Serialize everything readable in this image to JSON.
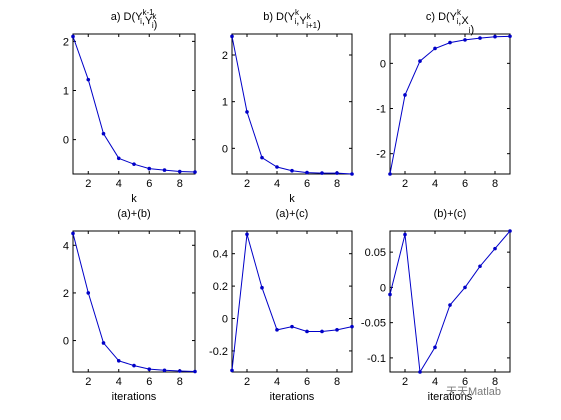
{
  "watermark": "天天Matlab",
  "chart_data": [
    {
      "type": "line",
      "title": {
        "base": "a)  D(Y",
        "parts": [
          {
            "sub": "i",
            "sup": "k-1"
          },
          {
            "text": ",Y"
          },
          {
            "sub": "i",
            "sup": "k"
          },
          {
            "text": ")"
          }
        ]
      },
      "xlabel": "k",
      "ylabel": "",
      "x": [
        1,
        2,
        3,
        4,
        5,
        6,
        7,
        8,
        9
      ],
      "series": [
        {
          "values": [
            2.1,
            1.22,
            0.12,
            -0.38,
            -0.5,
            -0.59,
            -0.62,
            -0.65,
            -0.66
          ]
        }
      ],
      "xlim": [
        1,
        9
      ],
      "ylim": [
        -0.7,
        2.15
      ],
      "xticks": [
        2,
        4,
        6,
        8
      ],
      "yticks": [
        0,
        1,
        2
      ],
      "color": "#0000c8"
    },
    {
      "type": "line",
      "title": {
        "base": "b)  D(Y",
        "parts": [
          {
            "sub": "i",
            "sup": "k"
          },
          {
            "text": ",Y"
          },
          {
            "sub": "i+1",
            "sup": "k"
          },
          {
            "text": ")"
          }
        ]
      },
      "xlabel": "k",
      "ylabel": "",
      "x": [
        1,
        2,
        3,
        4,
        5,
        6,
        7,
        8,
        9
      ],
      "series": [
        {
          "values": [
            2.4,
            0.78,
            -0.2,
            -0.4,
            -0.48,
            -0.52,
            -0.53,
            -0.53,
            -0.55
          ]
        }
      ],
      "xlim": [
        1,
        9
      ],
      "ylim": [
        -0.55,
        2.45
      ],
      "xticks": [
        2,
        4,
        6,
        8
      ],
      "yticks": [
        0,
        1,
        2
      ],
      "color": "#0000c8"
    },
    {
      "type": "line",
      "title": {
        "base": "c)  D(Y",
        "parts": [
          {
            "sub": "i",
            "sup": "k"
          },
          {
            "text": ",X"
          },
          {
            "sub": "i",
            "sup": ""
          },
          {
            "text": ")"
          }
        ]
      },
      "xlabel": "",
      "ylabel": "",
      "x": [
        1,
        2,
        3,
        4,
        5,
        6,
        7,
        8,
        9
      ],
      "series": [
        {
          "values": [
            -2.45,
            -0.7,
            0.05,
            0.33,
            0.46,
            0.52,
            0.56,
            0.59,
            0.6
          ]
        }
      ],
      "xlim": [
        1,
        9
      ],
      "ylim": [
        -2.45,
        0.65
      ],
      "xticks": [
        2,
        4,
        6,
        8
      ],
      "yticks": [
        -2,
        -1,
        0
      ],
      "color": "#0000c8"
    },
    {
      "type": "line",
      "title": {
        "base": "(a)+(b)",
        "parts": []
      },
      "xlabel": "iterations",
      "ylabel": "",
      "x": [
        1,
        2,
        3,
        4,
        5,
        6,
        7,
        8,
        9
      ],
      "series": [
        {
          "values": [
            4.5,
            2.0,
            -0.1,
            -0.85,
            -1.05,
            -1.2,
            -1.25,
            -1.28,
            -1.3
          ]
        }
      ],
      "xlim": [
        1,
        9
      ],
      "ylim": [
        -1.32,
        4.6
      ],
      "xticks": [
        2,
        4,
        6,
        8
      ],
      "yticks": [
        0,
        2,
        4
      ],
      "color": "#0000c8"
    },
    {
      "type": "line",
      "title": {
        "base": "(a)+(c)",
        "parts": []
      },
      "xlabel": "iterations",
      "ylabel": "",
      "x": [
        1,
        2,
        3,
        4,
        5,
        6,
        7,
        8,
        9
      ],
      "series": [
        {
          "values": [
            -0.32,
            0.52,
            0.19,
            -0.07,
            -0.05,
            -0.08,
            -0.08,
            -0.07,
            -0.05
          ]
        }
      ],
      "xlim": [
        1,
        9
      ],
      "ylim": [
        -0.33,
        0.54
      ],
      "xticks": [
        2,
        4,
        6,
        8
      ],
      "yticks": [
        -0.2,
        0,
        0.2,
        0.4
      ],
      "color": "#0000c8"
    },
    {
      "type": "line",
      "title": {
        "base": "(b)+(c)",
        "parts": []
      },
      "xlabel": "iterations",
      "ylabel": "",
      "x": [
        1,
        2,
        3,
        4,
        5,
        6,
        7,
        8,
        9
      ],
      "series": [
        {
          "values": [
            -0.01,
            0.075,
            -0.12,
            -0.085,
            -0.025,
            0.0,
            0.03,
            0.055,
            0.08
          ]
        }
      ],
      "xlim": [
        1,
        9
      ],
      "ylim": [
        -0.12,
        0.08
      ],
      "xticks": [
        2,
        4,
        6,
        8
      ],
      "yticks": [
        -0.1,
        -0.05,
        0,
        0.05
      ],
      "color": "#0000c8"
    }
  ]
}
